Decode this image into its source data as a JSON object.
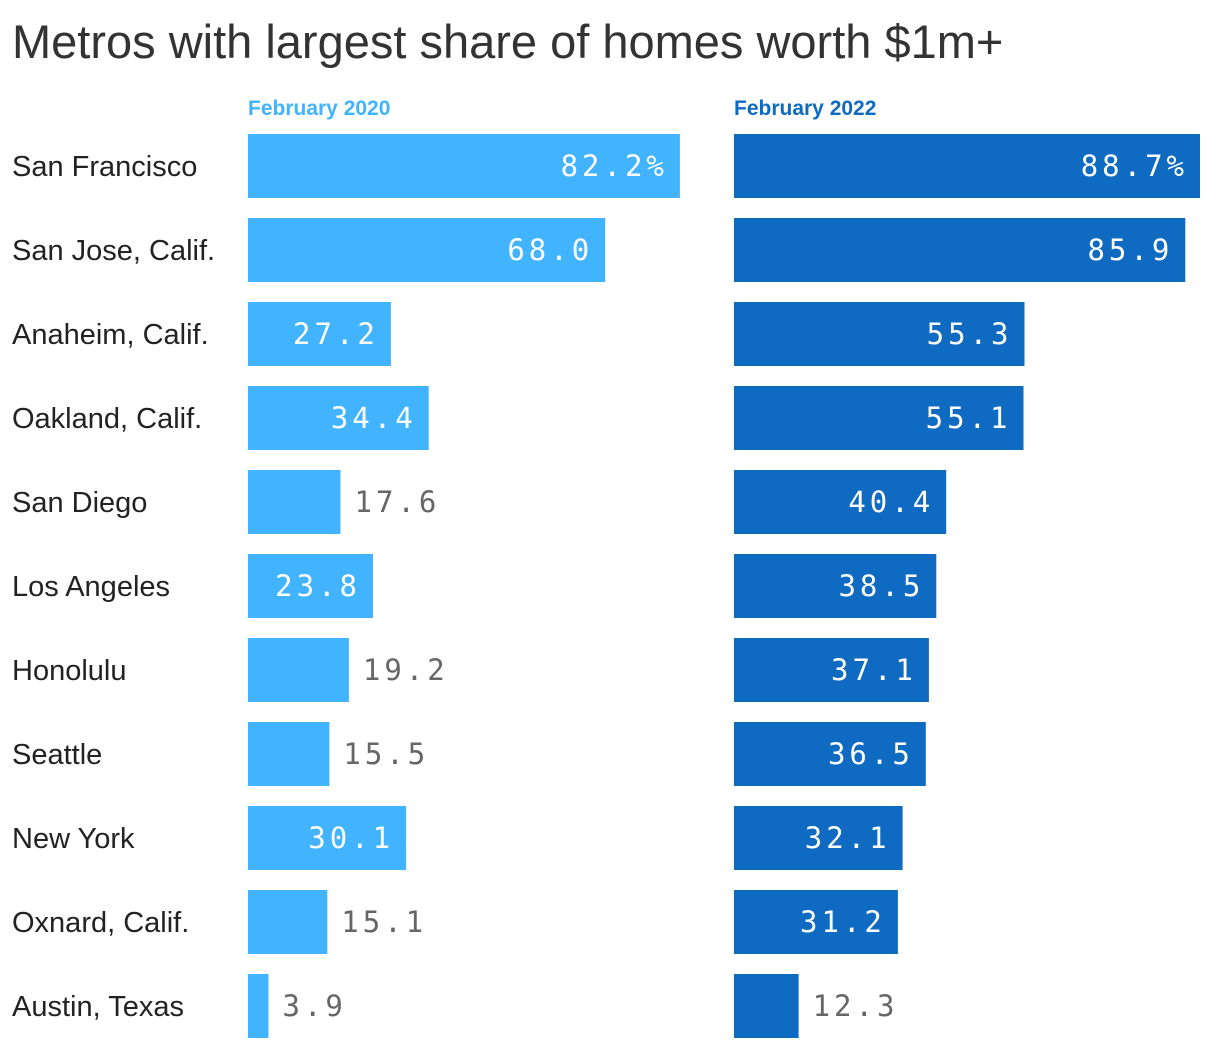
{
  "chart_data": {
    "type": "bar",
    "orientation": "horizontal",
    "title": "Metros with largest share of homes worth $1m+",
    "categories": [
      "San Francisco",
      "San Jose, Calif.",
      "Anaheim, Calif.",
      "Oakland, Calif.",
      "San Diego",
      "Los Angeles",
      "Honolulu",
      "Seattle",
      "New York",
      "Oxnard, Calif.",
      "Austin, Texas"
    ],
    "series": [
      {
        "name": "February 2020",
        "color": "#42b4ff",
        "values": [
          82.2,
          68.0,
          27.2,
          34.4,
          17.6,
          23.8,
          19.2,
          15.5,
          30.1,
          15.1,
          3.9
        ],
        "labels": [
          "82.2%",
          "68.0",
          "27.2",
          "34.4",
          "17.6",
          "23.8",
          "19.2",
          "15.5",
          "30.1",
          "15.1",
          "3.9"
        ]
      },
      {
        "name": "February 2022",
        "color": "#0e6bc1",
        "values": [
          88.7,
          85.9,
          55.3,
          55.1,
          40.4,
          38.5,
          37.1,
          36.5,
          32.1,
          31.2,
          12.3
        ],
        "labels": [
          "88.7%",
          "85.9",
          "55.3",
          "55.1",
          "40.4",
          "38.5",
          "37.1",
          "36.5",
          "32.1",
          "31.2",
          "12.3"
        ]
      }
    ],
    "xlim": [
      0,
      88.7
    ],
    "grid": false,
    "legend": "panel headers above each column"
  }
}
